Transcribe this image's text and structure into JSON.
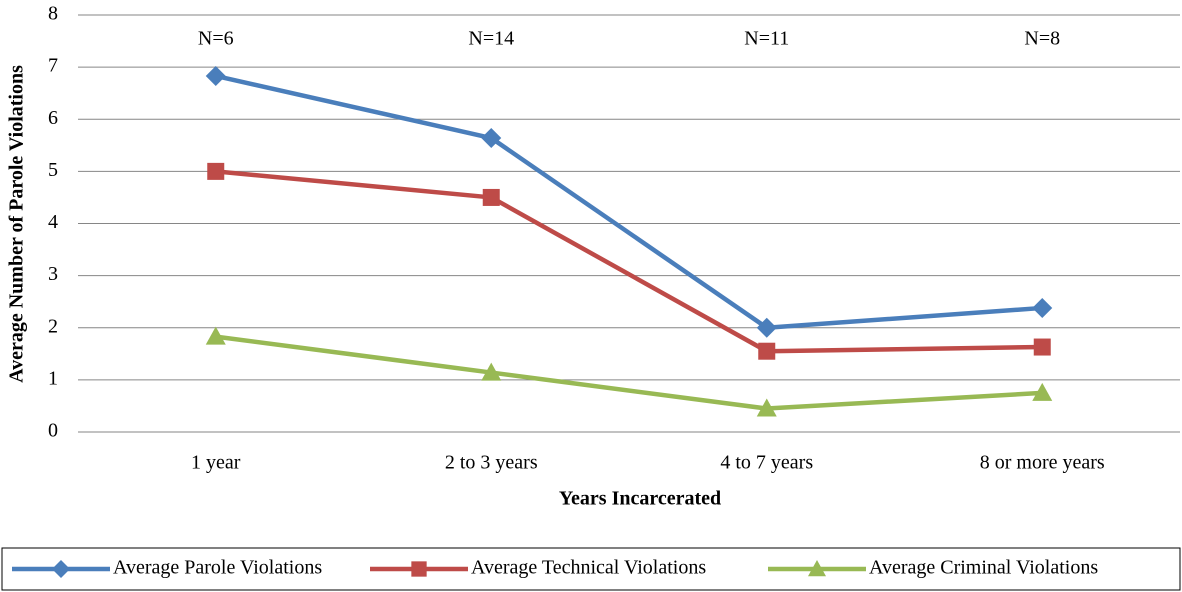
{
  "chart_data": {
    "type": "line",
    "xlabel": "Years Incarcerated",
    "ylabel": "Average Number of Parole Violations",
    "categories": [
      "1 year",
      "2 to 3 years",
      "4 to 7 years",
      "8 or more years"
    ],
    "annotations": [
      "N=6",
      "N=14",
      "N=11",
      "N=8"
    ],
    "series": [
      {
        "name": "Average Parole Violations",
        "color": "#4a7ebb",
        "marker": "diamond",
        "values": [
          6.83,
          5.64,
          2.0,
          2.38
        ]
      },
      {
        "name": "Average Technical Violations",
        "color": "#be4b48",
        "marker": "square",
        "values": [
          5.0,
          4.5,
          1.55,
          1.63
        ]
      },
      {
        "name": "Average Criminal Violations",
        "color": "#98b954",
        "marker": "triangle",
        "values": [
          1.83,
          1.14,
          0.45,
          0.75
        ]
      }
    ],
    "ylim": [
      0,
      8
    ],
    "yticks": [
      0,
      1,
      2,
      3,
      4,
      5,
      6,
      7,
      8
    ],
    "grid": true,
    "legend": "bottom"
  }
}
